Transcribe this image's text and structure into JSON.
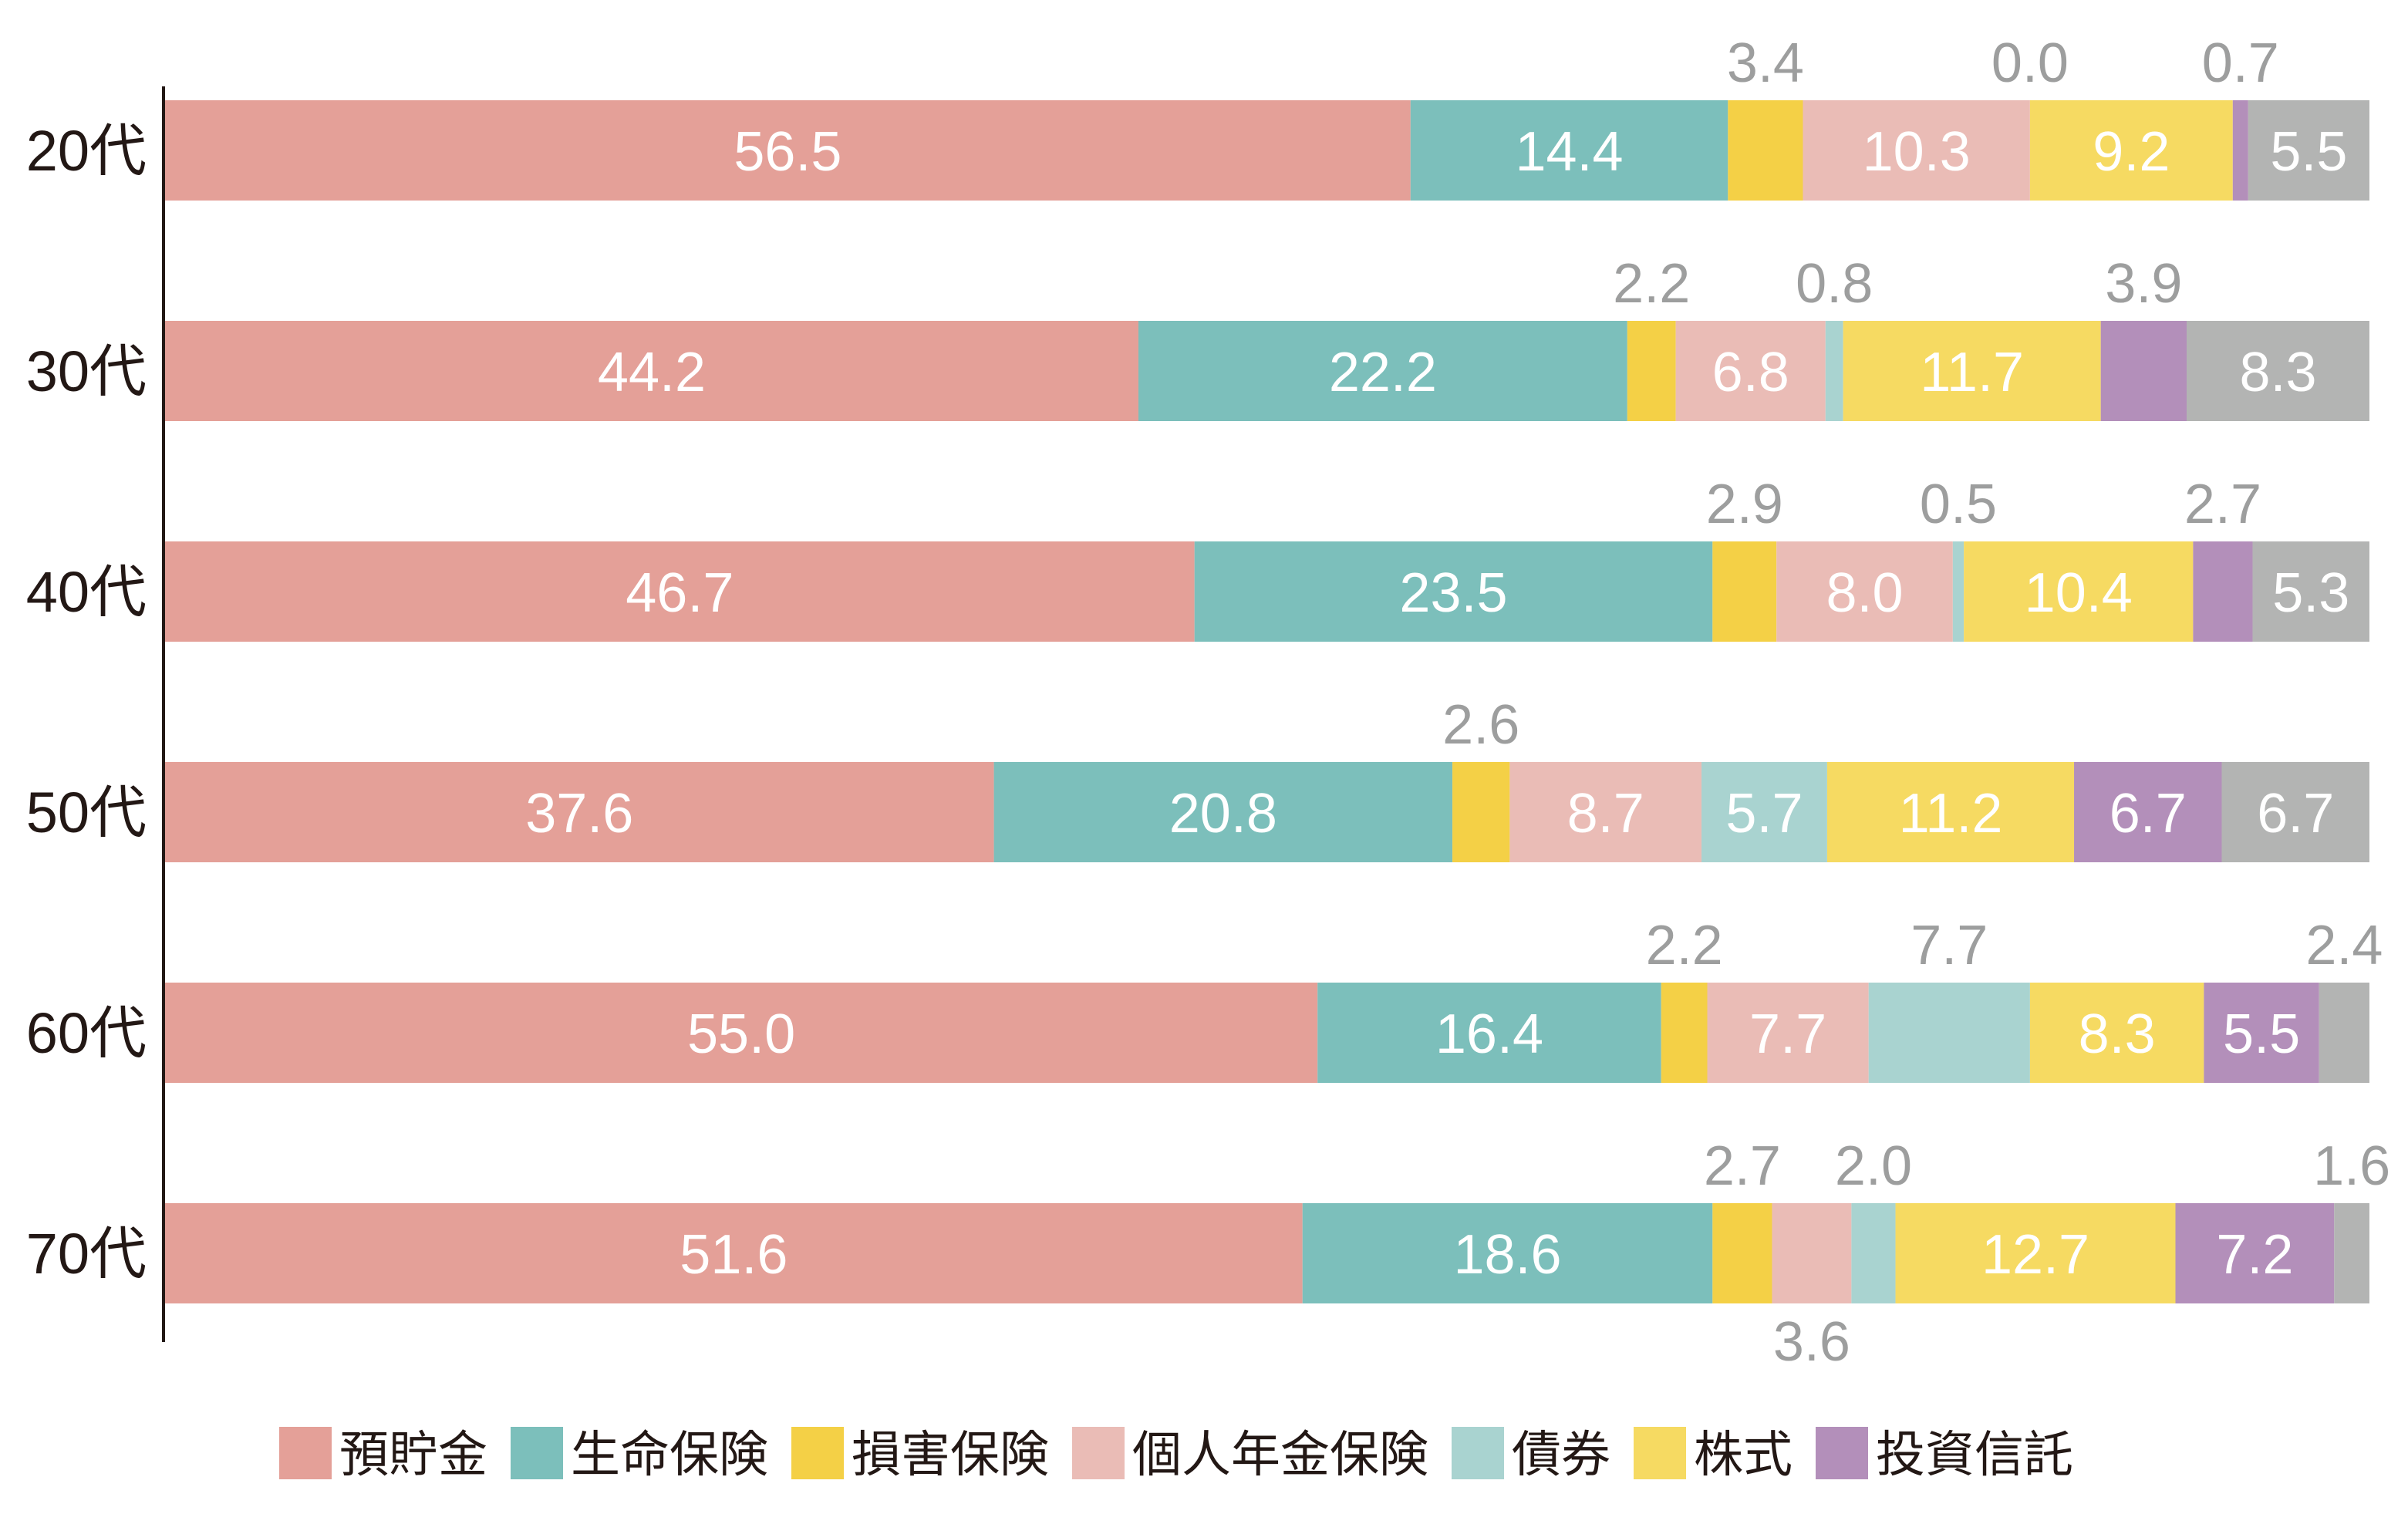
{
  "chart_data": {
    "type": "bar",
    "orientation": "horizontal",
    "stacked": true,
    "title": "",
    "xlabel": "",
    "ylabel": "",
    "categories": [
      "20代",
      "30代",
      "40代",
      "50代",
      "60代",
      "70代"
    ],
    "series": [
      {
        "name": "預貯金",
        "color": "#e4a098",
        "in_legend": true,
        "values": [
          56.5,
          44.2,
          46.7,
          37.6,
          55.0,
          51.6
        ],
        "label_pos": [
          "in",
          "in",
          "in",
          "in",
          "in",
          "in"
        ]
      },
      {
        "name": "生命保険",
        "color": "#7cbfbb",
        "in_legend": true,
        "values": [
          14.4,
          22.2,
          23.5,
          20.8,
          16.4,
          18.6
        ],
        "label_pos": [
          "in",
          "in",
          "in",
          "in",
          "in",
          "in"
        ]
      },
      {
        "name": "損害保険",
        "color": "#f4d046",
        "in_legend": true,
        "values": [
          3.4,
          2.2,
          2.9,
          2.6,
          2.2,
          2.7
        ],
        "label_pos": [
          "above",
          "above",
          "above",
          "above",
          "above",
          "above"
        ]
      },
      {
        "name": "個人年金保険",
        "color": "#eabcb6",
        "in_legend": true,
        "values": [
          10.3,
          6.8,
          8.0,
          8.7,
          7.7,
          3.6
        ],
        "label_pos": [
          "in",
          "in",
          "in",
          "in",
          "in",
          "below"
        ]
      },
      {
        "name": "債券",
        "color": "#a9d3d0",
        "in_legend": true,
        "values": [
          0.0,
          0.8,
          0.5,
          5.7,
          7.7,
          2.0
        ],
        "label_pos": [
          "above",
          "above",
          "above",
          "in",
          "above",
          "above"
        ]
      },
      {
        "name": "株式",
        "color": "#f6da62",
        "in_legend": true,
        "values": [
          9.2,
          11.7,
          10.4,
          11.2,
          8.3,
          12.7
        ],
        "label_pos": [
          "in",
          "in",
          "in",
          "in",
          "in",
          "in"
        ]
      },
      {
        "name": "投資信託",
        "color": "#b38fba",
        "in_legend": true,
        "values": [
          0.7,
          3.9,
          2.7,
          6.7,
          5.5,
          7.2
        ],
        "label_pos": [
          "above",
          "above",
          "above",
          "in",
          "in",
          "in"
        ]
      },
      {
        "name": "",
        "color": "#b3b4b3",
        "in_legend": false,
        "values": [
          5.5,
          8.3,
          5.3,
          6.7,
          2.4,
          1.6
        ],
        "label_pos": [
          "in",
          "in",
          "in",
          "in",
          "above",
          "above"
        ]
      }
    ],
    "label_colors": {
      "inside": "#ffffff",
      "outside": "#9d9e9e"
    },
    "legend_position": "bottom",
    "grid": false
  }
}
